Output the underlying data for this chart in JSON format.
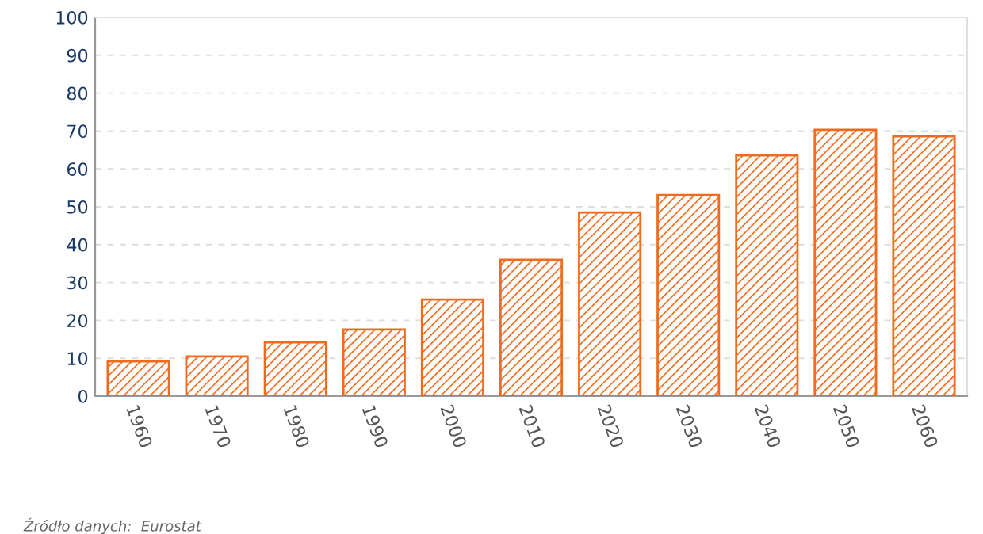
{
  "chart_data": {
    "type": "bar",
    "categories": [
      "1960",
      "1970",
      "1980",
      "1990",
      "2000",
      "2010",
      "2020",
      "2030",
      "2040",
      "2050",
      "2060"
    ],
    "values": [
      9.2,
      10.5,
      14.2,
      17.6,
      25.5,
      36,
      48.5,
      53.1,
      63.6,
      70.3,
      68.6
    ],
    "color": "#f26b1d",
    "ylim": [
      0,
      100
    ],
    "yticks": [
      0,
      10,
      20,
      30,
      40,
      50,
      60,
      70,
      80,
      90,
      100
    ],
    "grid": "y",
    "annotations": [
      "Źródło danych:  Eurostat"
    ]
  }
}
